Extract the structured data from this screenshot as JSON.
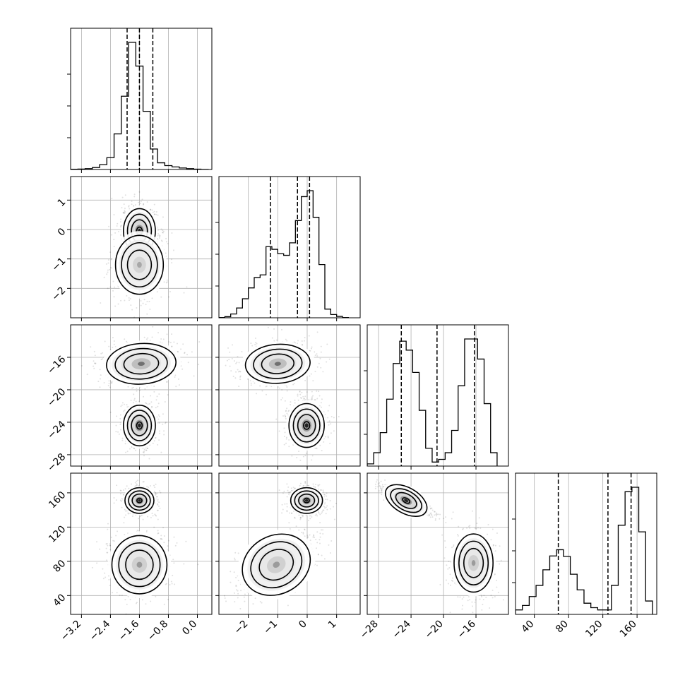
{
  "chart_data": {
    "type": "corner",
    "grid": true,
    "parameters": [
      {
        "range": [
          -3.5,
          0.4
        ],
        "ticks": [
          -3.2,
          -2.4,
          -1.6,
          -0.8,
          0.0
        ],
        "tick_labels": [
          "−3.2",
          "−2.4",
          "−1.6",
          "−0.8",
          "0.0"
        ],
        "quantiles": [
          -1.94,
          -1.6,
          -1.23
        ]
      },
      {
        "range": [
          -3.0,
          1.8
        ],
        "ticks": [
          -2,
          -1,
          0,
          1
        ],
        "tick_labels": [
          "−2",
          "−1",
          "0",
          "1"
        ],
        "quantiles": [
          -1.25,
          -0.33,
          0.08
        ]
      },
      {
        "range": [
          -29.4,
          -12.0
        ],
        "ticks": [
          -28,
          -24,
          -20,
          -16
        ],
        "tick_labels": [
          "−28",
          "−24",
          "−20",
          "−16"
        ],
        "quantiles": [
          -25.2,
          -20.8,
          -16.2
        ]
      },
      {
        "range": [
          18,
          183
        ],
        "ticks": [
          40,
          80,
          120,
          160
        ],
        "tick_labels": [
          "40",
          "80",
          "120",
          "160"
        ],
        "quantiles": [
          68,
          126,
          153
        ]
      }
    ],
    "histograms": [
      {
        "parameter": 0,
        "bin_edges": [
          -3.5,
          -3.3,
          -3.1,
          -2.9,
          -2.7,
          -2.5,
          -2.3,
          -2.1,
          -1.9,
          -1.7,
          -1.5,
          -1.3,
          -1.1,
          -0.9,
          -0.7,
          -0.5,
          -0.3,
          -0.1,
          0.1,
          0.3
        ],
        "counts": [
          2,
          4,
          8,
          18,
          45,
          110,
          330,
          680,
          1180,
          960,
          540,
          190,
          62,
          36,
          24,
          14,
          8,
          3,
          1
        ]
      },
      {
        "parameter": 1,
        "bin_edges": [
          -3.0,
          -2.8,
          -2.6,
          -2.4,
          -2.2,
          -2.0,
          -1.8,
          -1.6,
          -1.4,
          -1.2,
          -1.0,
          -0.8,
          -0.6,
          -0.4,
          -0.2,
          0.0,
          0.2,
          0.4,
          0.6,
          0.8,
          1.0,
          1.2,
          1.4
        ],
        "counts": [
          1,
          4,
          14,
          36,
          70,
          110,
          148,
          158,
          262,
          252,
          236,
          230,
          276,
          358,
          446,
          468,
          370,
          196,
          32,
          12,
          5,
          1
        ]
      },
      {
        "parameter": 2,
        "bin_edges": [
          -29.4,
          -28.6,
          -27.8,
          -27.0,
          -26.2,
          -25.4,
          -24.6,
          -23.8,
          -23.0,
          -22.2,
          -21.4,
          -20.6,
          -19.8,
          -19.0,
          -18.2,
          -17.4,
          -16.6,
          -15.8,
          -15.0,
          -14.2,
          -13.4
        ],
        "counts": [
          10,
          60,
          150,
          300,
          460,
          560,
          520,
          420,
          250,
          80,
          18,
          30,
          60,
          160,
          360,
          570,
          570,
          480,
          280,
          60
        ]
      },
      {
        "parameter": 3,
        "bin_edges": [
          18,
          26,
          34,
          42,
          50,
          58,
          66,
          74,
          82,
          90,
          98,
          106,
          114,
          122,
          130,
          138,
          146,
          154,
          162,
          170,
          178
        ],
        "counts": [
          20,
          40,
          80,
          130,
          200,
          262,
          290,
          260,
          180,
          110,
          50,
          30,
          20,
          20,
          130,
          400,
          550,
          570,
          370,
          60
        ]
      }
    ],
    "pairs": [
      {
        "x_param": 0,
        "y_param": 1,
        "modes": [
          {
            "cx": -1.6,
            "cy": -0.05,
            "sx": 0.22,
            "sy": 0.38,
            "rho": 0,
            "peak": 1,
            "weight": 0.55
          },
          {
            "cx": -1.6,
            "cy": -1.2,
            "sx": 0.33,
            "sy": 0.5,
            "rho": 0,
            "peak": 0.25,
            "weight": 0.45
          }
        ]
      },
      {
        "x_param": 0,
        "y_param": 2,
        "modes": [
          {
            "cx": -1.55,
            "cy": -16.8,
            "sx": 0.48,
            "sy": 1.25,
            "rho": 0.1,
            "peak": 0.5,
            "weight": 0.5
          },
          {
            "cx": -1.6,
            "cy": -24.4,
            "sx": 0.22,
            "sy": 1.25,
            "rho": 0,
            "peak": 1,
            "weight": 0.5
          }
        ]
      },
      {
        "x_param": 1,
        "y_param": 2,
        "modes": [
          {
            "cx": -1.0,
            "cy": -16.8,
            "sx": 0.55,
            "sy": 1.2,
            "rho": 0.1,
            "peak": 0.5,
            "weight": 0.5
          },
          {
            "cx": -0.02,
            "cy": -24.4,
            "sx": 0.3,
            "sy": 1.35,
            "rho": 0,
            "peak": 1,
            "weight": 0.5
          }
        ]
      },
      {
        "x_param": 0,
        "y_param": 3,
        "modes": [
          {
            "cx": -1.6,
            "cy": 151,
            "sx": 0.2,
            "sy": 7.5,
            "rho": 0,
            "peak": 1,
            "weight": 0.5
          },
          {
            "cx": -1.6,
            "cy": 76,
            "sx": 0.38,
            "sy": 17,
            "rho": 0,
            "peak": 0.3,
            "weight": 0.5
          }
        ]
      },
      {
        "x_param": 1,
        "y_param": 3,
        "modes": [
          {
            "cx": -0.02,
            "cy": 151,
            "sx": 0.27,
            "sy": 7.5,
            "rho": 0,
            "peak": 1,
            "weight": 0.5
          },
          {
            "cx": -1.05,
            "cy": 76,
            "sx": 0.6,
            "sy": 17,
            "rho": 0.6,
            "peak": 0.3,
            "weight": 0.5
          }
        ]
      },
      {
        "x_param": 2,
        "y_param": 3,
        "modes": [
          {
            "cx": -24.6,
            "cy": 151,
            "sx": 1.4,
            "sy": 7.5,
            "rho": -0.9,
            "peak": 1,
            "weight": 0.5
          },
          {
            "cx": -16.3,
            "cy": 78,
            "sx": 1.2,
            "sy": 17,
            "rho": 0,
            "peak": 0.3,
            "weight": 0.5
          }
        ]
      }
    ]
  }
}
